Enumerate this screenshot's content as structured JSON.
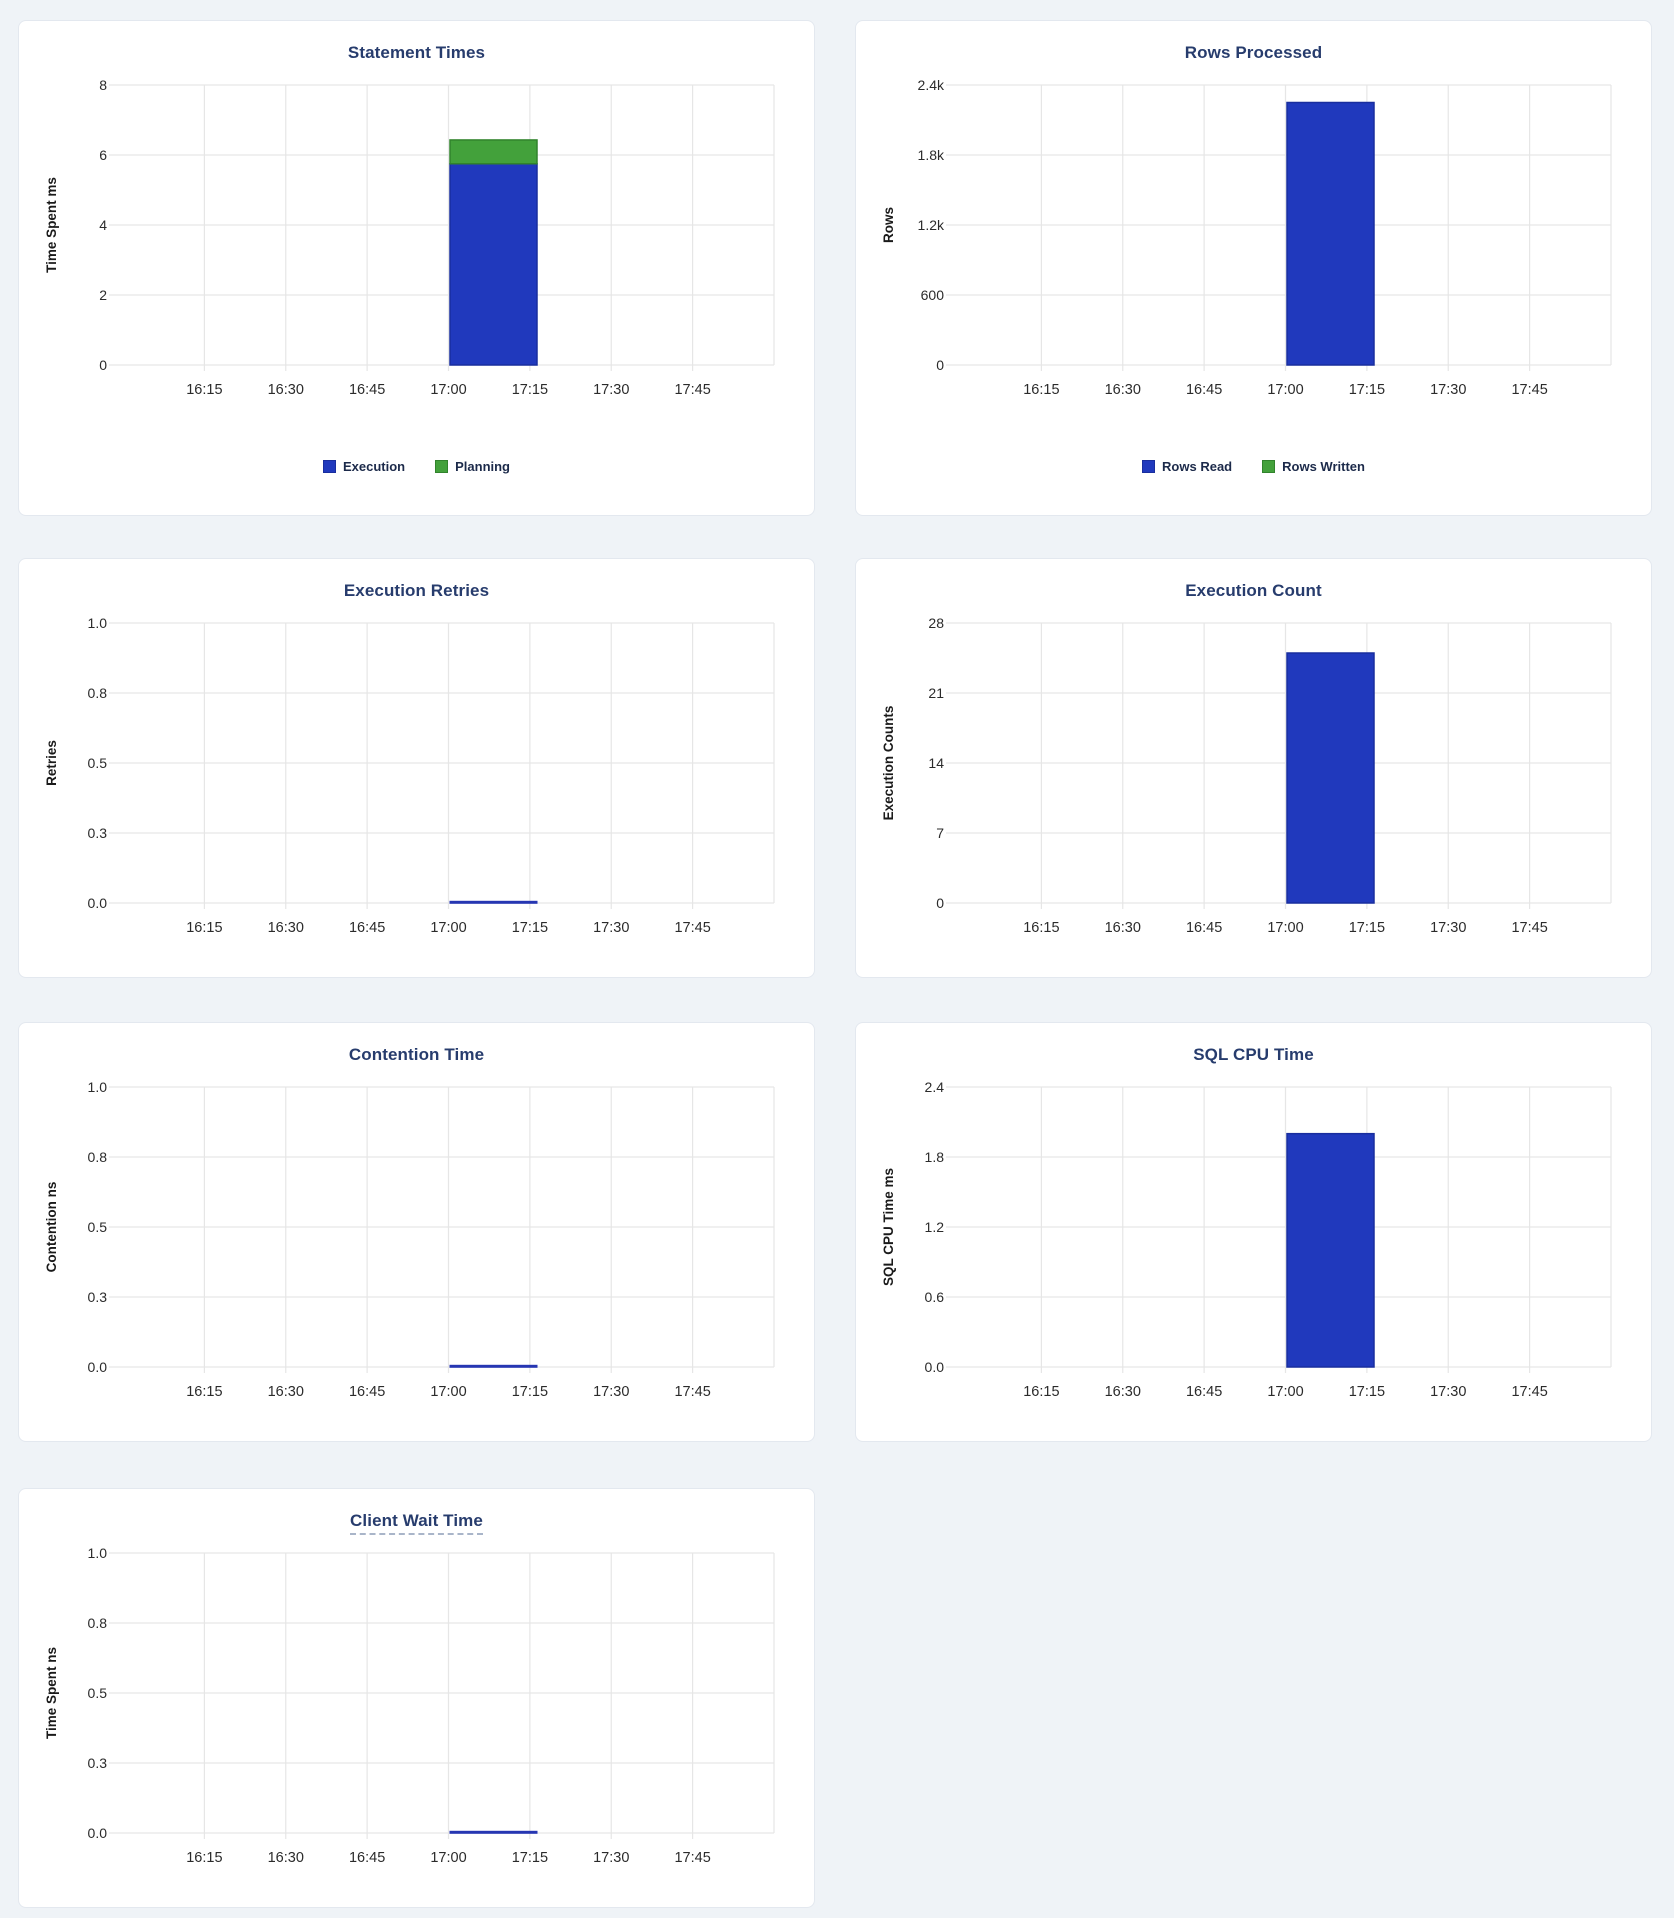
{
  "page": {
    "background_color": "#eff3f7",
    "card_background": "#ffffff",
    "card_border_color": "#e3e8ef",
    "title_color": "#273c6d",
    "gridline_color": "#e6e6e6",
    "tick_text_color": "#2b2b2b",
    "accent_blue": "#2039bd",
    "accent_green": "#43a13b"
  },
  "chart_data": [
    {
      "type": "bar",
      "title": "Statement Times",
      "ylabel": "Time Spent ms",
      "ylim": [
        0,
        8
      ],
      "y_max": 8,
      "y_tick_labels": [
        "8",
        "6",
        "4",
        "2",
        "0"
      ],
      "x_tick_labels": [
        "16:15",
        "16:30",
        "16:45",
        "17:00",
        "17:15",
        "17:30",
        "17:45"
      ],
      "x_range": [
        "16:00",
        "18:00"
      ],
      "bar_interval": "17:00-17:15",
      "legend": true,
      "title_tooltip": false,
      "series": [
        {
          "name": "Execution",
          "value": 5.75,
          "color": "#2039bd",
          "stroke": "#192e9e"
        },
        {
          "name": "Planning",
          "value": 0.68,
          "color": "#43a13b",
          "stroke": "#31832c"
        }
      ]
    },
    {
      "type": "bar",
      "title": "Rows Processed",
      "ylabel": "Rows",
      "ylim": [
        0,
        2400
      ],
      "y_max": 2400,
      "y_tick_labels": [
        "2.4k",
        "1.8k",
        "1.2k",
        "600",
        "0"
      ],
      "x_tick_labels": [
        "16:15",
        "16:30",
        "16:45",
        "17:00",
        "17:15",
        "17:30",
        "17:45"
      ],
      "x_range": [
        "16:00",
        "18:00"
      ],
      "bar_interval": "17:00-17:15",
      "legend": true,
      "title_tooltip": false,
      "series": [
        {
          "name": "Rows Read",
          "value": 2250,
          "color": "#2039bd",
          "stroke": "#192e9e"
        },
        {
          "name": "Rows Written",
          "value": 0,
          "color": "#43a13b",
          "stroke": "#31832c"
        }
      ]
    },
    {
      "type": "line",
      "title": "Execution Retries",
      "ylabel": "Retries",
      "ylim": [
        0,
        1
      ],
      "y_max": 1,
      "y_tick_labels": [
        "1.0",
        "0.8",
        "0.5",
        "0.3",
        "0.0"
      ],
      "x_tick_labels": [
        "16:15",
        "16:30",
        "16:45",
        "17:00",
        "17:15",
        "17:30",
        "17:45"
      ],
      "x_range": [
        "16:00",
        "18:00"
      ],
      "bar_interval": "17:00-17:15",
      "legend": false,
      "title_tooltip": false,
      "series": [
        {
          "value": 0,
          "color": "#2636b2",
          "stroke": "#2636b2"
        }
      ]
    },
    {
      "type": "bar",
      "title": "Execution Count",
      "ylabel": "Execution Counts",
      "ylim": [
        0,
        28
      ],
      "y_max": 28,
      "y_tick_labels": [
        "28",
        "21",
        "14",
        "7",
        "0"
      ],
      "x_tick_labels": [
        "16:15",
        "16:30",
        "16:45",
        "17:00",
        "17:15",
        "17:30",
        "17:45"
      ],
      "x_range": [
        "16:00",
        "18:00"
      ],
      "bar_interval": "17:00-17:15",
      "legend": false,
      "title_tooltip": false,
      "series": [
        {
          "value": 25,
          "color": "#2039bd",
          "stroke": "#192e9e"
        }
      ]
    },
    {
      "type": "line",
      "title": "Contention Time",
      "ylabel": "Contention ns",
      "ylim": [
        0,
        1
      ],
      "y_max": 1,
      "y_tick_labels": [
        "1.0",
        "0.8",
        "0.5",
        "0.3",
        "0.0"
      ],
      "x_tick_labels": [
        "16:15",
        "16:30",
        "16:45",
        "17:00",
        "17:15",
        "17:30",
        "17:45"
      ],
      "x_range": [
        "16:00",
        "18:00"
      ],
      "bar_interval": "17:00-17:15",
      "legend": false,
      "title_tooltip": false,
      "series": [
        {
          "value": 0,
          "color": "#2636b2",
          "stroke": "#2636b2"
        }
      ]
    },
    {
      "type": "bar",
      "title": "SQL CPU Time",
      "ylabel": "SQL CPU Time ms",
      "ylim": [
        0,
        2.4
      ],
      "y_max": 2.4,
      "y_tick_labels": [
        "2.4",
        "1.8",
        "1.2",
        "0.6",
        "0.0"
      ],
      "x_tick_labels": [
        "16:15",
        "16:30",
        "16:45",
        "17:00",
        "17:15",
        "17:30",
        "17:45"
      ],
      "x_range": [
        "16:00",
        "18:00"
      ],
      "bar_interval": "17:00-17:15",
      "legend": false,
      "title_tooltip": false,
      "series": [
        {
          "value": 2.0,
          "color": "#2039bd",
          "stroke": "#192e9e"
        }
      ]
    },
    {
      "type": "line",
      "title": "Client Wait Time",
      "ylabel": "Time Spent ns",
      "ylim": [
        0,
        1
      ],
      "y_max": 1,
      "y_tick_labels": [
        "1.0",
        "0.8",
        "0.5",
        "0.3",
        "0.0"
      ],
      "x_tick_labels": [
        "16:15",
        "16:30",
        "16:45",
        "17:00",
        "17:15",
        "17:30",
        "17:45"
      ],
      "x_range": [
        "16:00",
        "18:00"
      ],
      "bar_interval": "17:00-17:15",
      "legend": false,
      "title_tooltip": true,
      "series": [
        {
          "value": 0,
          "color": "#2636b2",
          "stroke": "#2636b2"
        }
      ]
    }
  ]
}
